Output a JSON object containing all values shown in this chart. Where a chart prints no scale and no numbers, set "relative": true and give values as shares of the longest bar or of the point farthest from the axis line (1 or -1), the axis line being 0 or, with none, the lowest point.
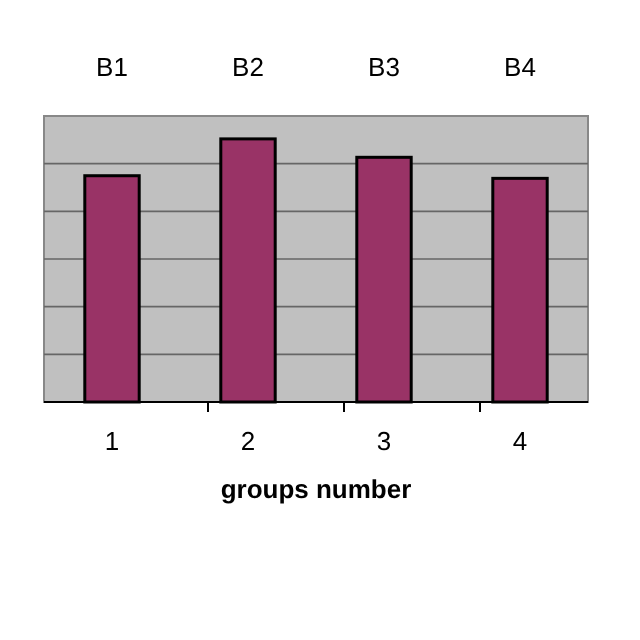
{
  "chart_data": {
    "type": "bar",
    "relative": true,
    "categories": [
      "1",
      "2",
      "3",
      "4"
    ],
    "values": [
      0.86,
      1,
      0.93,
      0.85
    ],
    "color": "#993366",
    "xlabel": "groups number",
    "grid": "y",
    "annotations": [
      "B1",
      "B2",
      "B3",
      "B4"
    ]
  }
}
